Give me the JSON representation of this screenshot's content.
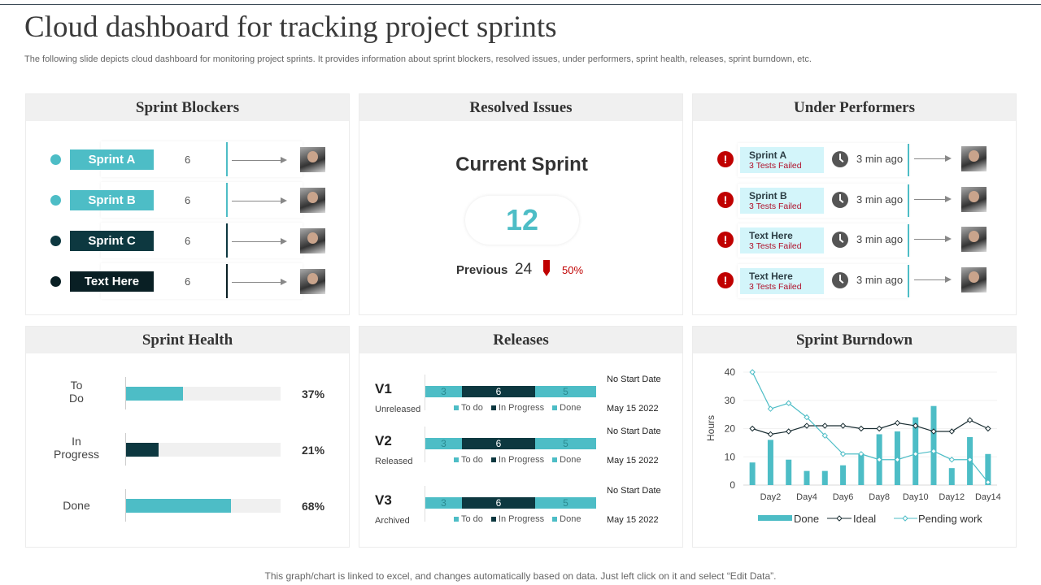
{
  "title": "Cloud dashboard for tracking project sprints",
  "subtitle": "The following slide depicts cloud dashboard for monitoring project sprints. It provides information about sprint blockers, resolved issues, under performers, sprint health, releases, sprint burndown, etc.",
  "colors": {
    "teal": "#4dbdc6",
    "dark_teal": "#0d3840",
    "darkest": "#091f24",
    "red": "#c00000",
    "light_cyan": "#d3f5fa"
  },
  "sprint_blockers": {
    "title": "Sprint Blockers",
    "items": [
      {
        "label": "Sprint A",
        "count": "6",
        "color": "#4dbdc6"
      },
      {
        "label": "Sprint B",
        "count": "6",
        "color": "#4dbdc6"
      },
      {
        "label": "Sprint C",
        "count": "6",
        "color": "#0d3840"
      },
      {
        "label": "Text Here",
        "count": "6",
        "color": "#091f24"
      }
    ]
  },
  "resolved_issues": {
    "title": "Resolved Issues",
    "heading": "Current Sprint",
    "current": "12",
    "previous_label": "Previous",
    "previous": "24",
    "change": "50%"
  },
  "under_performers": {
    "title": "Under Performers",
    "items": [
      {
        "name": "Sprint A",
        "status": "3 Tests Failed",
        "time": "3 min ago"
      },
      {
        "name": "Sprint B",
        "status": "3 Tests Failed",
        "time": "3 min ago"
      },
      {
        "name": "Text Here",
        "status": "3 Tests Failed",
        "time": "3 min ago"
      },
      {
        "name": "Text Here",
        "status": "3 Tests Failed",
        "time": "3 min ago"
      }
    ]
  },
  "sprint_health": {
    "title": "Sprint Health",
    "items": [
      {
        "label": "To Do",
        "value": 37,
        "text": "37%",
        "color": "#4dbdc6"
      },
      {
        "label": "In Progress",
        "value": 21,
        "text": "21%",
        "color": "#0d3840"
      },
      {
        "label": "Done",
        "value": 68,
        "text": "68%",
        "color": "#4dbdc6"
      }
    ]
  },
  "releases": {
    "title": "Releases",
    "legend": [
      "To do",
      "In Progress",
      "Done"
    ],
    "items": [
      {
        "version": "V1",
        "status": "Unreleased",
        "todo": 3,
        "in_progress": 6,
        "done": 5,
        "start": "No Start Date",
        "end": "May 15 2022"
      },
      {
        "version": "V2",
        "status": "Released",
        "todo": 3,
        "in_progress": 6,
        "done": 5,
        "start": "No Start Date",
        "end": "May 15 2022"
      },
      {
        "version": "V3",
        "status": "Archived",
        "todo": 3,
        "in_progress": 6,
        "done": 5,
        "start": "No Start Date",
        "end": "May 15 2022"
      }
    ]
  },
  "chart_data": {
    "type": "bar+line",
    "title": "Sprint Burndown",
    "ylabel": "Hours",
    "ylim": [
      0,
      40
    ],
    "yticks": [
      0,
      10,
      20,
      30,
      40
    ],
    "categories": [
      "Day1",
      "Day2",
      "Day3",
      "Day4",
      "Day5",
      "Day6",
      "Day7",
      "Day8",
      "Day9",
      "Day10",
      "Day11",
      "Day12",
      "Day13",
      "Day14"
    ],
    "xticklabels": [
      "Day2",
      "Day4",
      "Day6",
      "Day8",
      "Day10",
      "Day12",
      "Day14"
    ],
    "legend_position": "bottom",
    "series": [
      {
        "name": "Done",
        "type": "bar",
        "color": "#4dbdc6",
        "values": [
          8,
          16,
          9,
          5,
          5,
          7,
          11,
          18,
          19,
          24,
          28,
          6,
          17,
          11
        ]
      },
      {
        "name": "Ideal",
        "type": "line",
        "color": "#1a2e33",
        "values": [
          20,
          18,
          19,
          21,
          21,
          21,
          20,
          20,
          22,
          21,
          19,
          19,
          23,
          20
        ]
      },
      {
        "name": "Pending work",
        "type": "line",
        "color": "#4dbdc6",
        "values": [
          40,
          27,
          29,
          24,
          17.5,
          11,
          11,
          9,
          9,
          11,
          12,
          9,
          9,
          1
        ]
      }
    ]
  },
  "footer": "This graph/chart is linked to excel, and changes automatically based on data. Just left click on it and select “Edit Data”."
}
